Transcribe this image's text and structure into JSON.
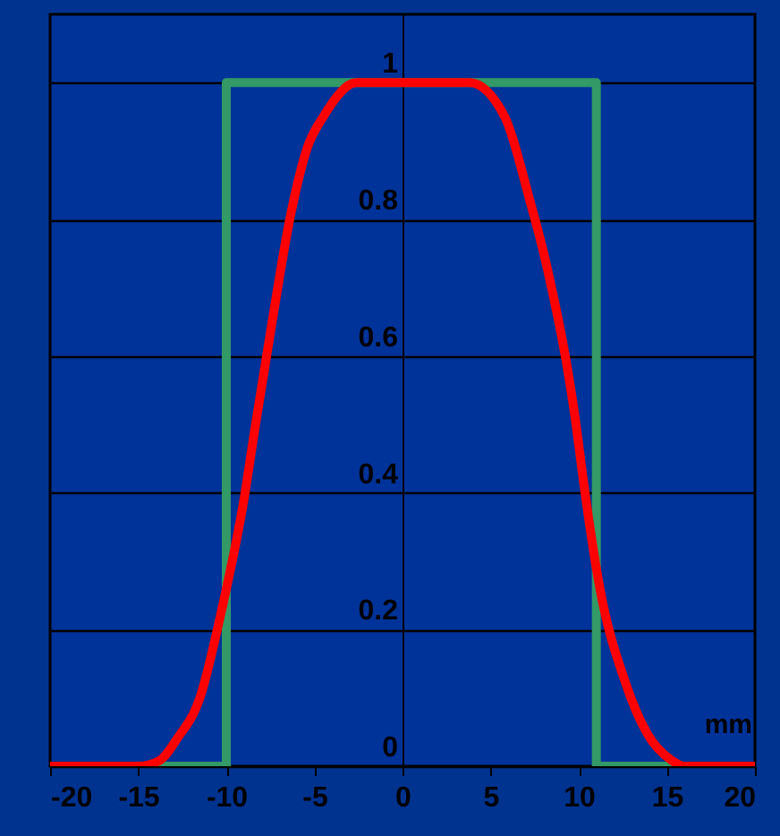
{
  "chart_data": {
    "type": "line",
    "xlabel": "mm",
    "xlim": [
      -20,
      20
    ],
    "xticks": [
      -20,
      -15,
      -10,
      -5,
      0,
      5,
      10,
      15,
      20
    ],
    "ylim": [
      0,
      1.1
    ],
    "yticks": [
      0,
      0.2,
      0.4,
      0.6,
      0.8,
      1
    ],
    "grid": "y",
    "line_style": "solid",
    "marker": "none",
    "series": [
      {
        "color": "#339966",
        "x": [
          -20,
          -10,
          -10,
          11,
          11,
          20
        ],
        "values": [
          0,
          0,
          1,
          1,
          0,
          0
        ]
      },
      {
        "color": "#ff0000",
        "x": [
          -20,
          -15,
          -13.8,
          -12.8,
          -11.5,
          -10.25,
          -9,
          -8.4,
          -7.4,
          -6.4,
          -5.4,
          -4.5,
          -2.6,
          3.8,
          5.8,
          7.2,
          8.2,
          9.9,
          10.2,
          11.2,
          12.6,
          13.9,
          15.3,
          16,
          20
        ],
        "values": [
          0,
          0,
          0.008,
          0.04,
          0.1,
          0.23,
          0.39,
          0.49,
          0.65,
          0.8,
          0.905,
          0.95,
          1,
          1,
          0.95,
          0.83,
          0.73,
          0.49,
          0.43,
          0.26,
          0.126,
          0.047,
          0.008,
          0,
          0
        ]
      }
    ]
  }
}
